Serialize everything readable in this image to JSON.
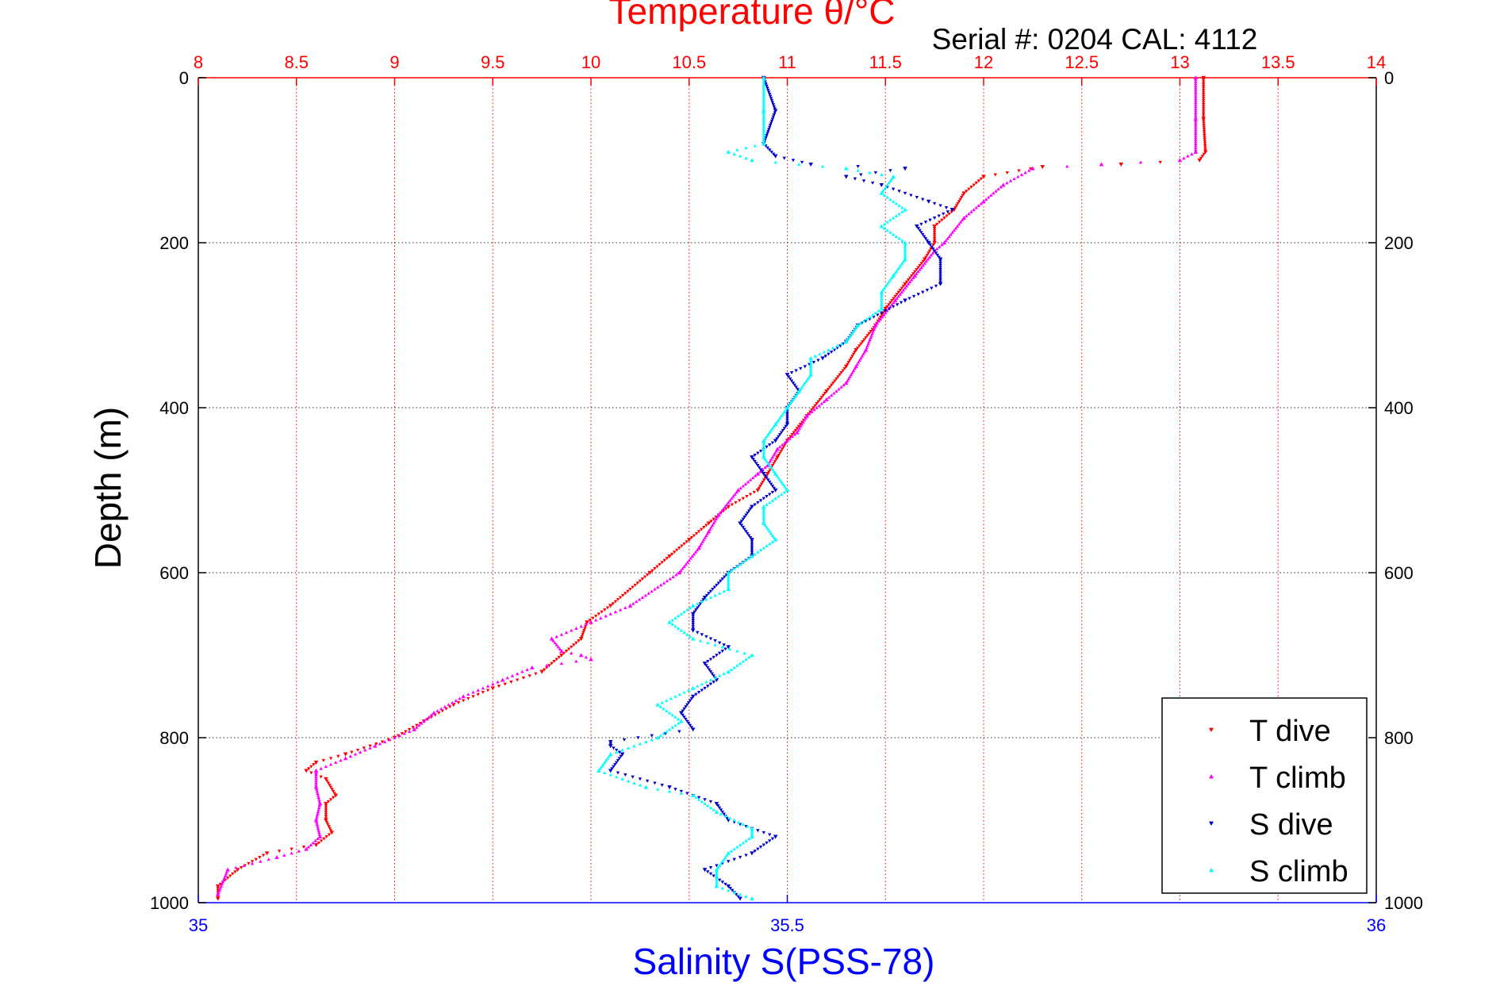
{
  "chart_data": {
    "type": "scatter",
    "title": "Temperature θ/°C",
    "subtitle": "Serial #: 0204  CAL: 4112",
    "xlabel": "Salinity S(PSS-78)",
    "ylabel": "Depth (m)",
    "top_axis": {
      "label": "Temperature θ/°C",
      "range": [
        8,
        14
      ],
      "ticks": [
        8,
        8.5,
        9,
        9.5,
        10,
        10.5,
        11,
        11.5,
        12,
        12.5,
        13,
        13.5,
        14
      ],
      "tick_labels": [
        "8",
        "8.5",
        "9",
        "9.5",
        "10",
        "10.5",
        "11",
        "11.5",
        "12",
        "12.5",
        "13",
        "13.5",
        "14"
      ],
      "color": "#ff0000"
    },
    "bottom_axis": {
      "label": "Salinity S(PSS-78)",
      "range": [
        35,
        36
      ],
      "ticks": [
        35,
        35.5,
        36
      ],
      "tick_labels": [
        "35",
        "35.5",
        "36"
      ],
      "color": "#0000ff"
    },
    "y_axis": {
      "label": "Depth (m)",
      "range": [
        0,
        1000
      ],
      "reversed": true,
      "ticks": [
        0,
        200,
        400,
        600,
        800,
        1000
      ],
      "tick_labels": [
        "0",
        "200",
        "400",
        "600",
        "800",
        "1000"
      ]
    },
    "grid": true,
    "legend_position": "bottom-right",
    "series": [
      {
        "name": "T dive",
        "axis": "top",
        "color": "#ff0000",
        "marker": "triangle-down",
        "points": [
          [
            13.12,
            0
          ],
          [
            13.12,
            50
          ],
          [
            13.13,
            90
          ],
          [
            13.1,
            100
          ],
          [
            12.7,
            105
          ],
          [
            12.3,
            108
          ],
          [
            12.0,
            120
          ],
          [
            11.9,
            140
          ],
          [
            11.85,
            160
          ],
          [
            11.75,
            180
          ],
          [
            11.75,
            200
          ],
          [
            11.7,
            220
          ],
          [
            11.6,
            250
          ],
          [
            11.5,
            280
          ],
          [
            11.45,
            300
          ],
          [
            11.35,
            330
          ],
          [
            11.3,
            350
          ],
          [
            11.2,
            380
          ],
          [
            11.1,
            410
          ],
          [
            11.0,
            440
          ],
          [
            10.95,
            460
          ],
          [
            10.9,
            480
          ],
          [
            10.85,
            500
          ],
          [
            10.7,
            520
          ],
          [
            10.6,
            540
          ],
          [
            10.5,
            560
          ],
          [
            10.4,
            580
          ],
          [
            10.3,
            600
          ],
          [
            10.1,
            640
          ],
          [
            9.98,
            660
          ],
          [
            9.95,
            680
          ],
          [
            9.85,
            700
          ],
          [
            9.75,
            720
          ],
          [
            9.5,
            740
          ],
          [
            9.3,
            760
          ],
          [
            9.15,
            780
          ],
          [
            9.0,
            800
          ],
          [
            8.75,
            820
          ],
          [
            8.6,
            830
          ],
          [
            8.55,
            840
          ],
          [
            8.65,
            850
          ],
          [
            8.7,
            870
          ],
          [
            8.65,
            880
          ],
          [
            8.65,
            900
          ],
          [
            8.68,
            915
          ],
          [
            8.6,
            930
          ],
          [
            8.35,
            940
          ],
          [
            8.2,
            960
          ],
          [
            8.1,
            980
          ],
          [
            8.1,
            995
          ]
        ]
      },
      {
        "name": "T climb",
        "axis": "top",
        "color": "#ff00ff",
        "marker": "triangle-up",
        "points": [
          [
            13.08,
            0
          ],
          [
            13.08,
            50
          ],
          [
            13.08,
            90
          ],
          [
            13.0,
            100
          ],
          [
            12.6,
            105
          ],
          [
            12.25,
            110
          ],
          [
            12.1,
            130
          ],
          [
            12.0,
            150
          ],
          [
            11.9,
            170
          ],
          [
            11.8,
            200
          ],
          [
            11.75,
            210
          ],
          [
            11.65,
            240
          ],
          [
            11.55,
            270
          ],
          [
            11.45,
            300
          ],
          [
            11.4,
            330
          ],
          [
            11.35,
            350
          ],
          [
            11.3,
            370
          ],
          [
            11.2,
            390
          ],
          [
            11.1,
            410
          ],
          [
            11.05,
            430
          ],
          [
            10.95,
            450
          ],
          [
            10.9,
            470
          ],
          [
            10.85,
            480
          ],
          [
            10.75,
            500
          ],
          [
            10.65,
            530
          ],
          [
            10.6,
            550
          ],
          [
            10.55,
            570
          ],
          [
            10.45,
            600
          ],
          [
            10.2,
            640
          ],
          [
            10.0,
            660
          ],
          [
            9.8,
            680
          ],
          [
            9.85,
            695
          ],
          [
            9.95,
            700
          ],
          [
            10.0,
            705
          ],
          [
            9.7,
            715
          ],
          [
            9.55,
            730
          ],
          [
            9.35,
            750
          ],
          [
            9.2,
            770
          ],
          [
            9.1,
            790
          ],
          [
            8.9,
            810
          ],
          [
            8.75,
            825
          ],
          [
            8.6,
            840
          ],
          [
            8.6,
            860
          ],
          [
            8.62,
            880
          ],
          [
            8.6,
            900
          ],
          [
            8.62,
            920
          ],
          [
            8.55,
            935
          ],
          [
            8.4,
            945
          ],
          [
            8.15,
            960
          ],
          [
            8.1,
            990
          ]
        ]
      },
      {
        "name": "S dive",
        "axis": "bottom",
        "color": "#0000cc",
        "marker": "triangle-down",
        "points": [
          [
            35.48,
            0
          ],
          [
            35.49,
            40
          ],
          [
            35.48,
            80
          ],
          [
            35.49,
            95
          ],
          [
            35.52,
            105
          ],
          [
            35.6,
            110
          ],
          [
            35.55,
            120
          ],
          [
            35.58,
            130
          ],
          [
            35.62,
            150
          ],
          [
            35.64,
            160
          ],
          [
            35.61,
            180
          ],
          [
            35.62,
            200
          ],
          [
            35.63,
            220
          ],
          [
            35.63,
            250
          ],
          [
            35.6,
            270
          ],
          [
            35.56,
            300
          ],
          [
            35.55,
            320
          ],
          [
            35.53,
            340
          ],
          [
            35.5,
            360
          ],
          [
            35.51,
            380
          ],
          [
            35.5,
            400
          ],
          [
            35.5,
            420
          ],
          [
            35.49,
            440
          ],
          [
            35.47,
            460
          ],
          [
            35.48,
            480
          ],
          [
            35.49,
            500
          ],
          [
            35.47,
            520
          ],
          [
            35.46,
            540
          ],
          [
            35.47,
            560
          ],
          [
            35.47,
            580
          ],
          [
            35.45,
            600
          ],
          [
            35.43,
            630
          ],
          [
            35.42,
            650
          ],
          [
            35.42,
            670
          ],
          [
            35.45,
            690
          ],
          [
            35.43,
            710
          ],
          [
            35.44,
            730
          ],
          [
            35.42,
            750
          ],
          [
            35.41,
            770
          ],
          [
            35.42,
            790
          ],
          [
            35.35,
            805
          ],
          [
            35.35,
            810
          ],
          [
            35.36,
            820
          ],
          [
            35.35,
            840
          ],
          [
            35.4,
            860
          ],
          [
            35.44,
            880
          ],
          [
            35.45,
            900
          ],
          [
            35.49,
            920
          ],
          [
            35.47,
            940
          ],
          [
            35.43,
            960
          ],
          [
            35.45,
            980
          ],
          [
            35.46,
            995
          ]
        ]
      },
      {
        "name": "S climb",
        "axis": "bottom",
        "color": "#00ffff",
        "marker": "triangle-up",
        "points": [
          [
            35.48,
            0
          ],
          [
            35.48,
            40
          ],
          [
            35.48,
            80
          ],
          [
            35.45,
            90
          ],
          [
            35.47,
            100
          ],
          [
            35.55,
            110
          ],
          [
            35.59,
            120
          ],
          [
            35.58,
            140
          ],
          [
            35.6,
            160
          ],
          [
            35.58,
            180
          ],
          [
            35.6,
            200
          ],
          [
            35.6,
            220
          ],
          [
            35.59,
            240
          ],
          [
            35.58,
            260
          ],
          [
            35.58,
            280
          ],
          [
            35.56,
            300
          ],
          [
            35.55,
            320
          ],
          [
            35.52,
            340
          ],
          [
            35.52,
            360
          ],
          [
            35.51,
            380
          ],
          [
            35.5,
            400
          ],
          [
            35.49,
            420
          ],
          [
            35.48,
            440
          ],
          [
            35.48,
            460
          ],
          [
            35.49,
            480
          ],
          [
            35.5,
            500
          ],
          [
            35.48,
            520
          ],
          [
            35.48,
            540
          ],
          [
            35.49,
            560
          ],
          [
            35.47,
            580
          ],
          [
            35.45,
            600
          ],
          [
            35.45,
            620
          ],
          [
            35.42,
            640
          ],
          [
            35.4,
            660
          ],
          [
            35.42,
            680
          ],
          [
            35.47,
            700
          ],
          [
            35.45,
            720
          ],
          [
            35.42,
            740
          ],
          [
            35.39,
            760
          ],
          [
            35.41,
            780
          ],
          [
            35.39,
            800
          ],
          [
            35.35,
            820
          ],
          [
            35.34,
            840
          ],
          [
            35.38,
            860
          ],
          [
            35.42,
            870
          ],
          [
            35.44,
            890
          ],
          [
            35.47,
            910
          ],
          [
            35.47,
            920
          ],
          [
            35.45,
            940
          ],
          [
            35.44,
            960
          ],
          [
            35.44,
            980
          ],
          [
            35.47,
            995
          ]
        ]
      }
    ]
  }
}
